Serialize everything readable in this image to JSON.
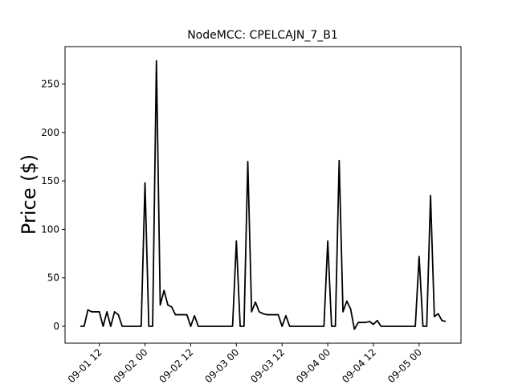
{
  "chart_data": {
    "type": "line",
    "title": "NodeMCC: CPELCAJN_7_B1",
    "y_label": "Price ($)",
    "color": "#000000",
    "x": [
      "09-01 07",
      "09-01 08",
      "09-01 09",
      "09-01 10",
      "09-01 11",
      "09-01 12",
      "09-01 13",
      "09-01 14",
      "09-01 15",
      "09-01 16",
      "09-01 17",
      "09-01 18",
      "09-01 19",
      "09-01 20",
      "09-01 21",
      "09-01 22",
      "09-01 23",
      "09-02 00",
      "09-02 01",
      "09-02 02",
      "09-02 03",
      "09-02 04",
      "09-02 05",
      "09-02 06",
      "09-02 07",
      "09-02 08",
      "09-02 09",
      "09-02 10",
      "09-02 11",
      "09-02 12",
      "09-02 13",
      "09-02 14",
      "09-02 15",
      "09-02 16",
      "09-02 17",
      "09-02 18",
      "09-02 19",
      "09-02 20",
      "09-02 21",
      "09-02 22",
      "09-02 23",
      "09-03 00",
      "09-03 01",
      "09-03 02",
      "09-03 03",
      "09-03 04",
      "09-03 05",
      "09-03 06",
      "09-03 07",
      "09-03 08",
      "09-03 09",
      "09-03 10",
      "09-03 11",
      "09-03 12",
      "09-03 13",
      "09-03 14",
      "09-03 15",
      "09-03 16",
      "09-03 17",
      "09-03 18",
      "09-03 19",
      "09-03 20",
      "09-03 21",
      "09-03 22",
      "09-03 23",
      "09-04 00",
      "09-04 01",
      "09-04 02",
      "09-04 03",
      "09-04 04",
      "09-04 05",
      "09-04 06",
      "09-04 07",
      "09-04 08",
      "09-04 09",
      "09-04 10",
      "09-04 11",
      "09-04 12",
      "09-04 13",
      "09-04 14",
      "09-04 15",
      "09-04 16",
      "09-04 17",
      "09-04 18",
      "09-04 19",
      "09-04 20",
      "09-04 21",
      "09-04 22",
      "09-04 23",
      "09-05 00",
      "09-05 01",
      "09-05 02",
      "09-05 03",
      "09-05 04",
      "09-05 05",
      "09-05 06",
      "09-05 07"
    ],
    "values": [
      0,
      0,
      17,
      15,
      15,
      15,
      0,
      15,
      0,
      15,
      12,
      0,
      0,
      0,
      0,
      0,
      0,
      148,
      0,
      0,
      274,
      22,
      37,
      22,
      20,
      12,
      12,
      12,
      12,
      0,
      11,
      0,
      0,
      0,
      0,
      0,
      0,
      0,
      0,
      0,
      0,
      88,
      0,
      0,
      170,
      15,
      25,
      15,
      13,
      12,
      12,
      12,
      12,
      0,
      11,
      0,
      0,
      0,
      0,
      0,
      0,
      0,
      0,
      0,
      0,
      88,
      0,
      0,
      171,
      15,
      26,
      18,
      -3,
      4,
      4,
      4,
      5,
      2,
      6,
      0,
      0,
      0,
      0,
      0,
      0,
      0,
      0,
      0,
      0,
      72,
      0,
      0,
      135,
      10,
      13,
      6,
      5
    ],
    "xlim": [
      "09-01 03",
      "09-05 11"
    ],
    "xticks": [
      "09-01 12",
      "09-02 00",
      "09-02 12",
      "09-03 00",
      "09-03 12",
      "09-04 00",
      "09-04 12",
      "09-05 00"
    ],
    "ylim": [
      -17.4,
      288.6
    ],
    "yticks": [
      0,
      50,
      100,
      150,
      200,
      250
    ]
  }
}
